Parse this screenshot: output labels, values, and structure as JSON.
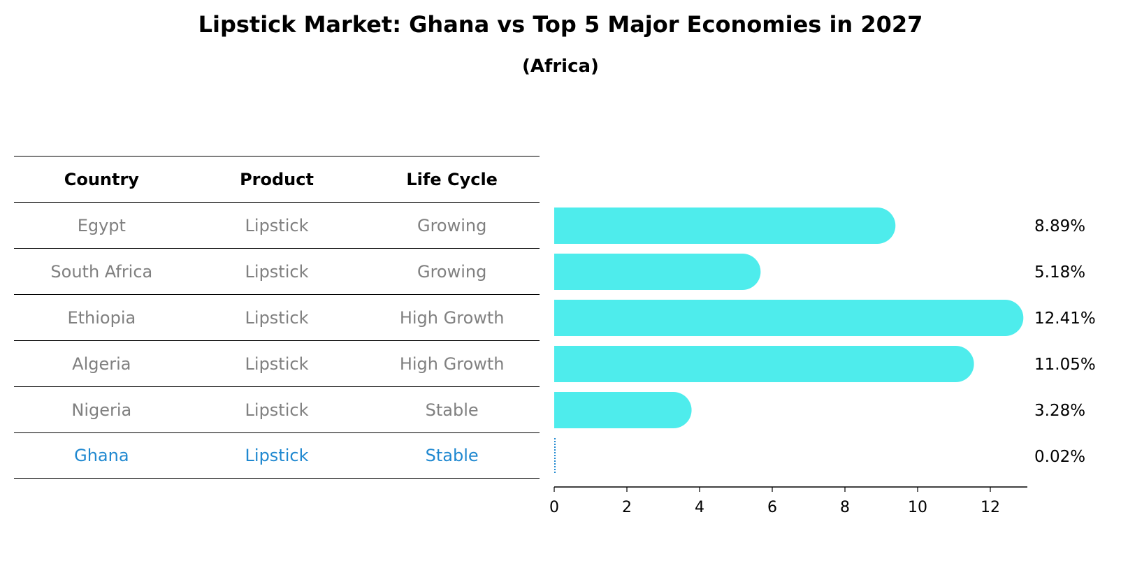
{
  "title": "Lipstick Market: Ghana vs Top 5 Major Economies in 2027",
  "subtitle": "(Africa)",
  "table": {
    "headers": [
      "Country",
      "Product",
      "Life Cycle"
    ],
    "rows": [
      {
        "country": "Egypt",
        "product": "Lipstick",
        "life_cycle": "Growing"
      },
      {
        "country": "South Africa",
        "product": "Lipstick",
        "life_cycle": "Growing"
      },
      {
        "country": "Ethiopia",
        "product": "Lipstick",
        "life_cycle": "High Growth"
      },
      {
        "country": "Algeria",
        "product": "Lipstick",
        "life_cycle": "High Growth"
      },
      {
        "country": "Nigeria",
        "product": "Lipstick",
        "life_cycle": "Stable"
      },
      {
        "country": "Ghana",
        "product": "Lipstick",
        "life_cycle": "Stable"
      }
    ]
  },
  "colors": {
    "bar": "#4eecec",
    "highlight": "#1f88d0",
    "muted_text": "#808080"
  },
  "chart_data": {
    "type": "bar",
    "orientation": "horizontal",
    "title": "Lipstick Market: Ghana vs Top 5 Major Economies in 2027",
    "subtitle": "(Africa)",
    "categories": [
      "Egypt",
      "South Africa",
      "Ethiopia",
      "Algeria",
      "Nigeria",
      "Ghana"
    ],
    "values": [
      8.89,
      5.18,
      12.41,
      11.05,
      3.28,
      0.02
    ],
    "value_labels": [
      "8.89%",
      "5.18%",
      "12.41%",
      "11.05%",
      "3.28%",
      "0.02%"
    ],
    "highlight_category": "Ghana",
    "xlim": [
      0,
      13
    ],
    "xticks": [
      0,
      2,
      4,
      6,
      8,
      10,
      12
    ],
    "xlabel": "",
    "ylabel": "",
    "grid": false
  }
}
